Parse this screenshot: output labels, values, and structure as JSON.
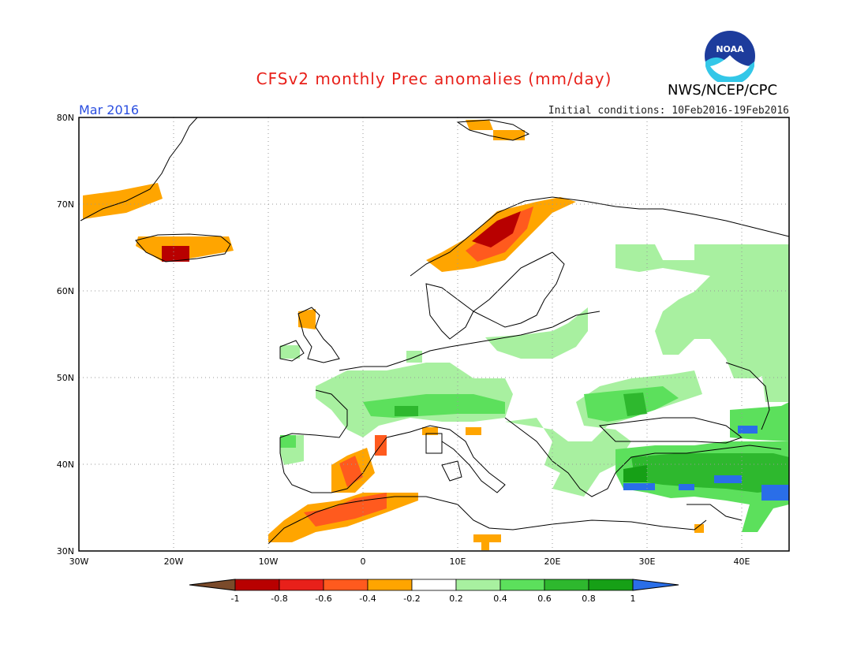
{
  "title": "CFSv2 monthly Prec anomalies (mm/day)",
  "month": "Mar 2016",
  "initial_conditions": "Initial conditions: 10Feb2016-19Feb2016",
  "agency": "NWS/NCEP/CPC",
  "logo_text": "NOAA",
  "map": {
    "lon_range": [
      -30,
      45
    ],
    "lat_range": [
      30,
      80
    ],
    "lat_labels": [
      "80N",
      "70N",
      "60N",
      "50N",
      "40N",
      "30N"
    ],
    "lon_labels": [
      "30W",
      "20W",
      "10W",
      "0",
      "10E",
      "20E",
      "30E",
      "40E"
    ],
    "grid": "dotted"
  },
  "colorbar": {
    "labels": [
      "-1",
      "-0.8",
      "-0.6",
      "-0.4",
      "-0.2",
      "0.2",
      "0.4",
      "0.6",
      "0.8",
      "1"
    ],
    "colors": [
      "#7a4a2a",
      "#b80000",
      "#e8201a",
      "#ff5a1e",
      "#ffa500",
      "#ffffff",
      "#a8f0a0",
      "#5ce05c",
      "#2eb82e",
      "#16a016",
      "#2a6ee8"
    ]
  },
  "colors": {
    "dry_extreme": "#b80000",
    "dry_strong": "#e8201a",
    "dry_moderate": "#ff5a1e",
    "dry_weak": "#ffa500",
    "wet_weak": "#a8f0a0",
    "wet_moderate": "#5ce05c",
    "wet_strong": "#2eb82e",
    "wet_very_strong": "#16a016",
    "wet_extreme": "#2a6ee8",
    "coast": "#000000"
  }
}
